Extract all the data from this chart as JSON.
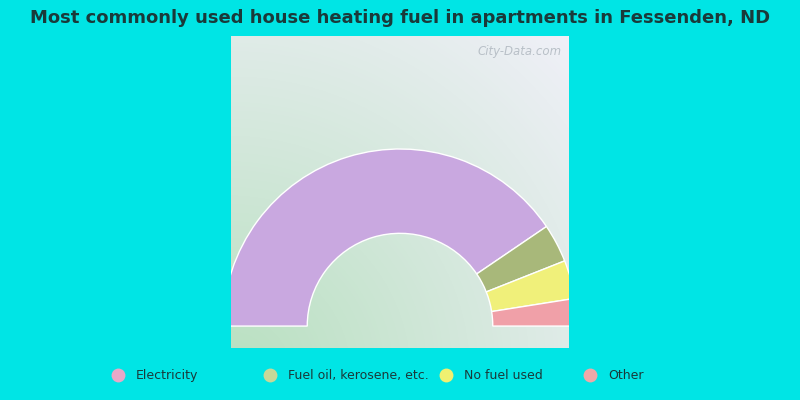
{
  "title": "Most commonly used house heating fuel in apartments in Fessenden, ND",
  "title_fontsize": 13,
  "cyan_color": "#00e5e5",
  "segments": [
    {
      "label": "Electricity",
      "value": 81.0,
      "color": "#c9a8e0"
    },
    {
      "label": "Fuel oil, kerosene, etc.",
      "value": 7.0,
      "color": "#a8b87a"
    },
    {
      "label": "No fuel used",
      "value": 7.0,
      "color": "#f0f07a"
    },
    {
      "label": "Other",
      "value": 5.0,
      "color": "#f0a0a8"
    }
  ],
  "legend_colors": [
    "#e8a8c8",
    "#c8d898",
    "#f0f070",
    "#f0a8a8"
  ],
  "watermark": "City-Data.com"
}
